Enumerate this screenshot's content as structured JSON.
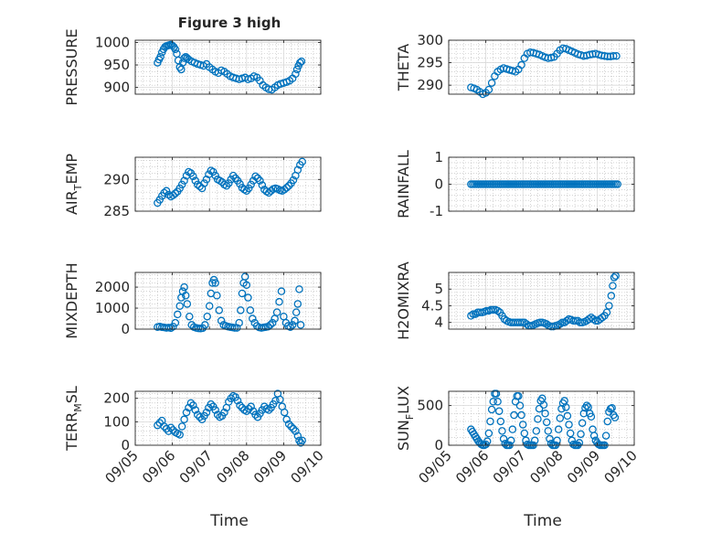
{
  "figure": {
    "title": "Figure 3 high",
    "xlabel": "Time",
    "x_tick_labels": [
      "09/05",
      "09/06",
      "09/07",
      "09/08",
      "09/09",
      "09/10"
    ],
    "marker_color": "#0072BD",
    "marker_style": "open-circle"
  },
  "chart_data": [
    {
      "id": "pressure",
      "type": "scatter",
      "ylabel": "PRESSURE",
      "ylim": [
        885,
        1005
      ],
      "yticks": [
        900,
        950,
        1000
      ],
      "yticklabels": [
        "900",
        "950",
        "1000"
      ],
      "xlim": [
        0,
        5
      ],
      "grid": true,
      "x": [
        0.6,
        0.64,
        0.68,
        0.72,
        0.76,
        0.8,
        0.84,
        0.88,
        0.92,
        0.96,
        1.0,
        1.04,
        1.08,
        1.12,
        1.16,
        1.2,
        1.24,
        1.28,
        1.32,
        1.36,
        1.4,
        1.44,
        1.52,
        1.6,
        1.68,
        1.76,
        1.84,
        1.92,
        2.0,
        2.08,
        2.16,
        2.24,
        2.32,
        2.4,
        2.48,
        2.56,
        2.64,
        2.72,
        2.8,
        2.88,
        2.96,
        3.04,
        3.12,
        3.2,
        3.28,
        3.36,
        3.44,
        3.52,
        3.6,
        3.68,
        3.76,
        3.84,
        3.92,
        4.0,
        4.08,
        4.16,
        4.24,
        4.32,
        4.36,
        4.4,
        4.44,
        4.48
      ],
      "y": [
        955,
        962,
        968,
        978,
        985,
        990,
        992,
        993,
        994,
        995,
        993,
        990,
        985,
        975,
        960,
        945,
        940,
        955,
        965,
        968,
        965,
        962,
        958,
        955,
        952,
        950,
        948,
        952,
        945,
        940,
        935,
        932,
        938,
        935,
        930,
        925,
        922,
        920,
        918,
        920,
        922,
        918,
        920,
        925,
        922,
        915,
        905,
        900,
        896,
        895,
        900,
        905,
        908,
        910,
        912,
        915,
        920,
        930,
        940,
        948,
        955,
        958
      ]
    },
    {
      "id": "theta",
      "type": "scatter",
      "ylabel": "THETA",
      "ylim": [
        288,
        300
      ],
      "yticks": [
        290,
        295,
        300
      ],
      "yticklabels": [
        "290",
        "295",
        "300"
      ],
      "xlim": [
        0,
        5
      ],
      "grid": true,
      "x": [
        0.6,
        0.68,
        0.76,
        0.84,
        0.92,
        1.0,
        1.08,
        1.16,
        1.24,
        1.32,
        1.4,
        1.48,
        1.56,
        1.64,
        1.72,
        1.8,
        1.88,
        1.96,
        2.04,
        2.12,
        2.2,
        2.28,
        2.36,
        2.44,
        2.52,
        2.6,
        2.68,
        2.76,
        2.84,
        2.92,
        3.0,
        3.08,
        3.16,
        3.24,
        3.32,
        3.4,
        3.48,
        3.56,
        3.64,
        3.72,
        3.8,
        3.88,
        3.96,
        4.04,
        4.12,
        4.2,
        4.28,
        4.36,
        4.44,
        4.52
      ],
      "y": [
        289.5,
        289.3,
        289,
        288.5,
        288,
        288.3,
        289,
        290.5,
        292,
        293,
        293.5,
        293.8,
        293.6,
        293.4,
        293.2,
        293,
        293.5,
        294.5,
        296,
        297,
        297.3,
        297.2,
        297,
        296.8,
        296.5,
        296.2,
        296,
        296.1,
        296.3,
        297,
        297.8,
        298.2,
        298.1,
        297.8,
        297.5,
        297.2,
        296.9,
        296.7,
        296.5,
        296.6,
        296.8,
        296.9,
        297,
        296.8,
        296.6,
        296.5,
        296.4,
        296.4,
        296.5,
        296.5
      ]
    },
    {
      "id": "air_temp",
      "type": "scatter",
      "ylabel_main": "AIR",
      "ylabel_sub": "T",
      "ylabel_rest": "EMP",
      "ylim": [
        285,
        293.5
      ],
      "yticks": [
        285,
        290
      ],
      "yticklabels": [
        "285",
        "290"
      ],
      "xlim": [
        0,
        5
      ],
      "grid": true,
      "x": [
        0.6,
        0.66,
        0.72,
        0.78,
        0.84,
        0.9,
        0.96,
        1.02,
        1.08,
        1.14,
        1.2,
        1.26,
        1.32,
        1.38,
        1.44,
        1.5,
        1.56,
        1.62,
        1.68,
        1.74,
        1.8,
        1.86,
        1.92,
        1.98,
        2.04,
        2.1,
        2.16,
        2.22,
        2.28,
        2.34,
        2.4,
        2.46,
        2.52,
        2.58,
        2.64,
        2.7,
        2.76,
        2.82,
        2.88,
        2.94,
        3.0,
        3.06,
        3.12,
        3.18,
        3.24,
        3.3,
        3.36,
        3.42,
        3.48,
        3.54,
        3.6,
        3.66,
        3.72,
        3.78,
        3.84,
        3.9,
        3.96,
        4.02,
        4.08,
        4.14,
        4.2,
        4.26,
        4.32,
        4.38,
        4.44,
        4.5
      ],
      "y": [
        286.3,
        286.8,
        287.4,
        287.9,
        288.2,
        287.6,
        287.3,
        287.5,
        287.8,
        288.1,
        288.6,
        289.2,
        289.8,
        290.6,
        291.2,
        291,
        290.5,
        289.8,
        289.2,
        288.9,
        288.6,
        289.4,
        290,
        290.8,
        291.4,
        291.2,
        290.6,
        290,
        289.8,
        289.6,
        289.2,
        289,
        289.4,
        290,
        290.6,
        290.2,
        289.8,
        289.3,
        288.7,
        288.4,
        288.2,
        288.6,
        289.2,
        289.8,
        290.5,
        290.2,
        289.8,
        289.1,
        288.4,
        288.1,
        287.9,
        288.2,
        288.5,
        288.6,
        288.5,
        288.3,
        288.2,
        288.4,
        288.7,
        289,
        289.4,
        289.9,
        290.6,
        291.5,
        292.3,
        292.8
      ]
    },
    {
      "id": "rainfall",
      "type": "scatter",
      "ylabel": "RAINFALL",
      "ylim": [
        -1,
        1
      ],
      "yticks": [
        -1,
        0,
        1
      ],
      "yticklabels": [
        "-1",
        "0",
        "1"
      ],
      "xlim": [
        0,
        5
      ],
      "grid": true,
      "x": [
        0.6,
        0.65,
        0.7,
        0.75,
        0.8,
        0.85,
        0.9,
        0.95,
        1.0,
        1.05,
        1.1,
        1.15,
        1.2,
        1.25,
        1.3,
        1.35,
        1.4,
        1.45,
        1.5,
        1.55,
        1.6,
        1.65,
        1.7,
        1.75,
        1.8,
        1.85,
        1.9,
        1.95,
        2.0,
        2.05,
        2.1,
        2.15,
        2.2,
        2.25,
        2.3,
        2.35,
        2.4,
        2.45,
        2.5,
        2.55,
        2.6,
        2.65,
        2.7,
        2.75,
        2.8,
        2.85,
        2.9,
        2.95,
        3.0,
        3.05,
        3.1,
        3.15,
        3.2,
        3.25,
        3.3,
        3.35,
        3.4,
        3.45,
        3.5,
        3.55,
        3.6,
        3.65,
        3.7,
        3.75,
        3.8,
        3.85,
        3.9,
        3.95,
        4.0,
        4.05,
        4.1,
        4.15,
        4.2,
        4.25,
        4.3,
        4.35,
        4.4,
        4.45,
        4.5,
        4.55
      ],
      "y": [
        0,
        0,
        0,
        0,
        0,
        0,
        0,
        0,
        0,
        0,
        0,
        0,
        0,
        0,
        0,
        0,
        0,
        0,
        0,
        0,
        0,
        0,
        0,
        0,
        0,
        0,
        0,
        0,
        0,
        0,
        0,
        0,
        0,
        0,
        0,
        0,
        0,
        0,
        0,
        0,
        0,
        0,
        0,
        0,
        0,
        0,
        0,
        0,
        0,
        0,
        0,
        0,
        0,
        0,
        0,
        0,
        0,
        0,
        0,
        0,
        0,
        0,
        0,
        0,
        0,
        0,
        0,
        0,
        0,
        0,
        0,
        0,
        0,
        0,
        0,
        0,
        0,
        0,
        0,
        0
      ]
    },
    {
      "id": "mixdepth",
      "type": "scatter",
      "ylabel": "MIXDEPTH",
      "ylim": [
        0,
        2700
      ],
      "yticks": [
        0,
        1000,
        2000
      ],
      "yticklabels": [
        "0",
        "1000",
        "2000"
      ],
      "xlim": [
        0,
        5
      ],
      "grid": true,
      "x": [
        0.6,
        0.66,
        0.72,
        0.78,
        0.84,
        0.9,
        0.96,
        1.02,
        1.08,
        1.14,
        1.2,
        1.24,
        1.28,
        1.32,
        1.36,
        1.4,
        1.46,
        1.52,
        1.58,
        1.64,
        1.7,
        1.76,
        1.82,
        1.88,
        1.94,
        2.0,
        2.04,
        2.08,
        2.12,
        2.16,
        2.2,
        2.26,
        2.32,
        2.38,
        2.44,
        2.5,
        2.56,
        2.62,
        2.68,
        2.74,
        2.8,
        2.84,
        2.88,
        2.92,
        2.96,
        3.0,
        3.04,
        3.1,
        3.16,
        3.22,
        3.28,
        3.34,
        3.4,
        3.46,
        3.52,
        3.58,
        3.64,
        3.7,
        3.76,
        3.82,
        3.88,
        3.94,
        4.0,
        4.06,
        4.12,
        4.18,
        4.24,
        4.3,
        4.34,
        4.38,
        4.42,
        4.46
      ],
      "y": [
        100,
        120,
        90,
        80,
        60,
        70,
        50,
        120,
        300,
        700,
        1100,
        1500,
        1800,
        2000,
        1600,
        1200,
        600,
        200,
        100,
        60,
        40,
        30,
        50,
        200,
        600,
        1100,
        1700,
        2200,
        2350,
        2200,
        1600,
        900,
        400,
        200,
        150,
        120,
        100,
        80,
        60,
        60,
        300,
        900,
        1700,
        2200,
        2500,
        2100,
        1500,
        900,
        500,
        300,
        150,
        80,
        60,
        80,
        100,
        120,
        200,
        300,
        500,
        800,
        1300,
        1800,
        600,
        300,
        150,
        100,
        200,
        400,
        800,
        1200,
        1900,
        200
      ]
    },
    {
      "id": "h2omixra",
      "type": "scatter",
      "ylabel": "H2OMIXRA",
      "ylim": [
        3.8,
        5.5
      ],
      "yticks": [
        4,
        4.5,
        5
      ],
      "yticklabels": [
        "4",
        "4.5",
        "5"
      ],
      "xlim": [
        0,
        5
      ],
      "grid": true,
      "x": [
        0.6,
        0.66,
        0.72,
        0.78,
        0.84,
        0.9,
        0.96,
        1.02,
        1.08,
        1.14,
        1.2,
        1.26,
        1.32,
        1.38,
        1.44,
        1.5,
        1.56,
        1.62,
        1.68,
        1.74,
        1.8,
        1.86,
        1.92,
        1.98,
        2.04,
        2.1,
        2.16,
        2.22,
        2.28,
        2.34,
        2.4,
        2.46,
        2.52,
        2.58,
        2.64,
        2.7,
        2.76,
        2.82,
        2.88,
        2.94,
        3.0,
        3.06,
        3.12,
        3.18,
        3.24,
        3.3,
        3.36,
        3.42,
        3.48,
        3.54,
        3.6,
        3.66,
        3.72,
        3.78,
        3.84,
        3.9,
        3.96,
        4.02,
        4.08,
        4.14,
        4.2,
        4.26,
        4.32,
        4.38,
        4.42,
        4.46,
        4.5
      ],
      "y": [
        4.2,
        4.25,
        4.25,
        4.3,
        4.3,
        4.3,
        4.32,
        4.35,
        4.35,
        4.38,
        4.38,
        4.38,
        4.35,
        4.3,
        4.2,
        4.1,
        4.05,
        4.02,
        4,
        4,
        4,
        4,
        4,
        4,
        4,
        3.95,
        3.9,
        3.9,
        3.92,
        3.95,
        3.98,
        4,
        4,
        3.98,
        3.95,
        3.9,
        3.88,
        3.88,
        3.9,
        3.92,
        3.95,
        4,
        4,
        4.05,
        4.1,
        4.08,
        4.05,
        4.05,
        4.05,
        4,
        4,
        4.02,
        4.05,
        4.1,
        4.15,
        4.1,
        4.05,
        4.05,
        4.1,
        4.15,
        4.2,
        4.3,
        4.5,
        4.8,
        5.1,
        5.35,
        5.4
      ]
    },
    {
      "id": "terr_msl",
      "type": "scatter",
      "ylabel_main": "TERR",
      "ylabel_sub": "M",
      "ylabel_rest": "SL",
      "ylim": [
        0,
        230
      ],
      "yticks": [
        0,
        100,
        200
      ],
      "yticklabels": [
        "0",
        "100",
        "200"
      ],
      "xlim": [
        0,
        5
      ],
      "grid": true,
      "x": [
        0.6,
        0.66,
        0.72,
        0.78,
        0.84,
        0.9,
        0.96,
        1.02,
        1.08,
        1.14,
        1.2,
        1.26,
        1.32,
        1.38,
        1.44,
        1.5,
        1.56,
        1.62,
        1.68,
        1.74,
        1.8,
        1.86,
        1.92,
        1.98,
        2.04,
        2.1,
        2.16,
        2.22,
        2.28,
        2.34,
        2.4,
        2.46,
        2.52,
        2.58,
        2.64,
        2.7,
        2.76,
        2.82,
        2.88,
        2.94,
        3.0,
        3.06,
        3.12,
        3.18,
        3.24,
        3.3,
        3.36,
        3.42,
        3.48,
        3.54,
        3.6,
        3.66,
        3.72,
        3.78,
        3.84,
        3.9,
        3.96,
        4.02,
        4.08,
        4.14,
        4.2,
        4.26,
        4.32,
        4.38,
        4.42,
        4.46,
        4.5
      ],
      "y": [
        85,
        95,
        105,
        80,
        70,
        60,
        75,
        65,
        55,
        50,
        45,
        80,
        110,
        140,
        160,
        180,
        170,
        150,
        130,
        120,
        110,
        125,
        140,
        160,
        175,
        165,
        150,
        130,
        120,
        125,
        140,
        160,
        185,
        200,
        210,
        205,
        190,
        170,
        160,
        150,
        145,
        155,
        165,
        145,
        130,
        120,
        135,
        150,
        165,
        155,
        150,
        160,
        175,
        190,
        220,
        195,
        165,
        140,
        110,
        90,
        80,
        70,
        60,
        40,
        20,
        10,
        20
      ]
    },
    {
      "id": "sun_flux",
      "type": "scatter",
      "ylabel_main": "SUN",
      "ylabel_sub": "F",
      "ylabel_rest": "LUX",
      "ylim": [
        0,
        680
      ],
      "yticks": [
        0,
        500
      ],
      "yticklabels": [
        "0",
        "500"
      ],
      "xlim": [
        0,
        5
      ],
      "grid": true,
      "x": [
        0.6,
        0.64,
        0.68,
        0.72,
        0.76,
        0.8,
        0.84,
        0.88,
        0.92,
        0.96,
        1.0,
        1.04,
        1.08,
        1.12,
        1.16,
        1.2,
        1.24,
        1.28,
        1.32,
        1.36,
        1.4,
        1.44,
        1.48,
        1.52,
        1.56,
        1.6,
        1.64,
        1.68,
        1.72,
        1.76,
        1.8,
        1.84,
        1.88,
        1.92,
        1.96,
        2.0,
        2.04,
        2.08,
        2.12,
        2.16,
        2.2,
        2.24,
        2.28,
        2.32,
        2.36,
        2.4,
        2.44,
        2.48,
        2.52,
        2.56,
        2.6,
        2.64,
        2.68,
        2.72,
        2.76,
        2.8,
        2.84,
        2.88,
        2.92,
        2.96,
        3.0,
        3.04,
        3.08,
        3.12,
        3.16,
        3.2,
        3.24,
        3.28,
        3.32,
        3.36,
        3.4,
        3.44,
        3.48,
        3.52,
        3.56,
        3.6,
        3.64,
        3.68,
        3.72,
        3.76,
        3.8,
        3.84,
        3.88,
        3.92,
        3.96,
        4.0,
        4.04,
        4.08,
        4.12,
        4.16,
        4.2,
        4.24,
        4.28,
        4.32,
        4.36,
        4.4,
        4.44,
        4.48
      ],
      "y": [
        200,
        170,
        140,
        110,
        80,
        50,
        30,
        10,
        0,
        0,
        10,
        50,
        150,
        300,
        450,
        550,
        650,
        650,
        550,
        430,
        300,
        180,
        80,
        20,
        0,
        0,
        0,
        60,
        200,
        380,
        550,
        620,
        620,
        500,
        380,
        260,
        150,
        60,
        10,
        0,
        0,
        0,
        0,
        60,
        180,
        330,
        460,
        560,
        590,
        510,
        400,
        290,
        180,
        80,
        20,
        0,
        0,
        0,
        60,
        200,
        340,
        460,
        530,
        560,
        480,
        370,
        260,
        150,
        60,
        10,
        0,
        0,
        0,
        30,
        140,
        280,
        400,
        470,
        500,
        480,
        400,
        360,
        200,
        120,
        60,
        30,
        10,
        0,
        0,
        0,
        0,
        120,
        300,
        420,
        460,
        470,
        380,
        350
      ]
    }
  ]
}
